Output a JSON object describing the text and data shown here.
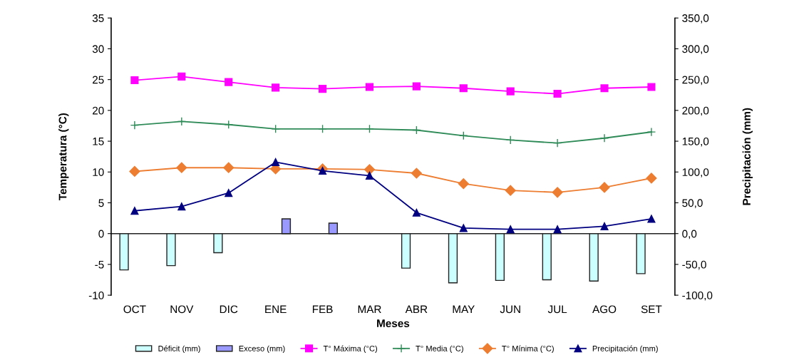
{
  "chart_data": {
    "type": "bar",
    "xlabel": "Meses",
    "ylabel": "Temperatura (°C)",
    "y2label": "Precipitación (mm)",
    "categories": [
      "OCT",
      "NOV",
      "DIC",
      "ENE",
      "FEB",
      "MAR",
      "ABR",
      "MAY",
      "JUN",
      "JUL",
      "AGO",
      "SET"
    ],
    "series": [
      {
        "name": "Déficit (mm)",
        "axis": "y2",
        "color": "#ccffff",
        "values": [
          -59,
          -52,
          -31,
          null,
          null,
          null,
          -56,
          -80,
          -76,
          -75,
          -77,
          -65
        ]
      },
      {
        "name": "Exceso (mm)",
        "axis": "y2",
        "color": "#9999ff",
        "values": [
          null,
          null,
          null,
          24,
          17,
          null,
          null,
          null,
          null,
          null,
          null,
          null
        ]
      },
      {
        "name": "T° Máxima (°C)",
        "type": "line",
        "marker": "square",
        "color": "#ff00ff",
        "values": [
          24.9,
          25.5,
          24.6,
          23.7,
          23.5,
          23.8,
          23.9,
          23.6,
          23.1,
          22.7,
          23.6,
          23.8
        ]
      },
      {
        "name": "T° Media (°C)",
        "type": "line",
        "marker": "cross",
        "color": "#2e8b57",
        "values": [
          17.6,
          18.2,
          17.7,
          17.0,
          17.0,
          17.0,
          16.8,
          15.9,
          15.2,
          14.7,
          15.5,
          16.5
        ]
      },
      {
        "name": "T° Mínima (°C)",
        "type": "line",
        "marker": "diamond",
        "color": "#ed7d31",
        "values": [
          10.1,
          10.7,
          10.7,
          10.5,
          10.5,
          10.4,
          9.8,
          8.1,
          7.0,
          6.7,
          7.5,
          9.0
        ]
      },
      {
        "name": "Precipitación (mm)",
        "type": "line",
        "axis": "y2",
        "marker": "triangle",
        "color": "#000080",
        "values": [
          37,
          44,
          66,
          116,
          102,
          94,
          34,
          9,
          7,
          7,
          12,
          24
        ]
      }
    ],
    "ylim": [
      -10,
      35
    ],
    "yticks": [
      -10,
      -5,
      0,
      5,
      10,
      15,
      20,
      25,
      30,
      35
    ],
    "y2lim": [
      -100,
      350
    ],
    "y2ticks": [
      {
        "value": -100,
        "label": "-100,0"
      },
      {
        "value": -50,
        "label": "-50,0"
      },
      {
        "value": 0,
        "label": "0,0"
      },
      {
        "value": 50,
        "label": "50,0"
      },
      {
        "value": 100,
        "label": "100,0"
      },
      {
        "value": 150,
        "label": "150,0"
      },
      {
        "value": 200,
        "label": "200,0"
      },
      {
        "value": 250,
        "label": "250,0"
      },
      {
        "value": 300,
        "label": "300,0"
      },
      {
        "value": 350,
        "label": "350,0"
      }
    ],
    "ref_lines": [
      {
        "axis": "y",
        "value": 0,
        "color": "#222222"
      }
    ],
    "grid": false,
    "legend": "bottom"
  }
}
